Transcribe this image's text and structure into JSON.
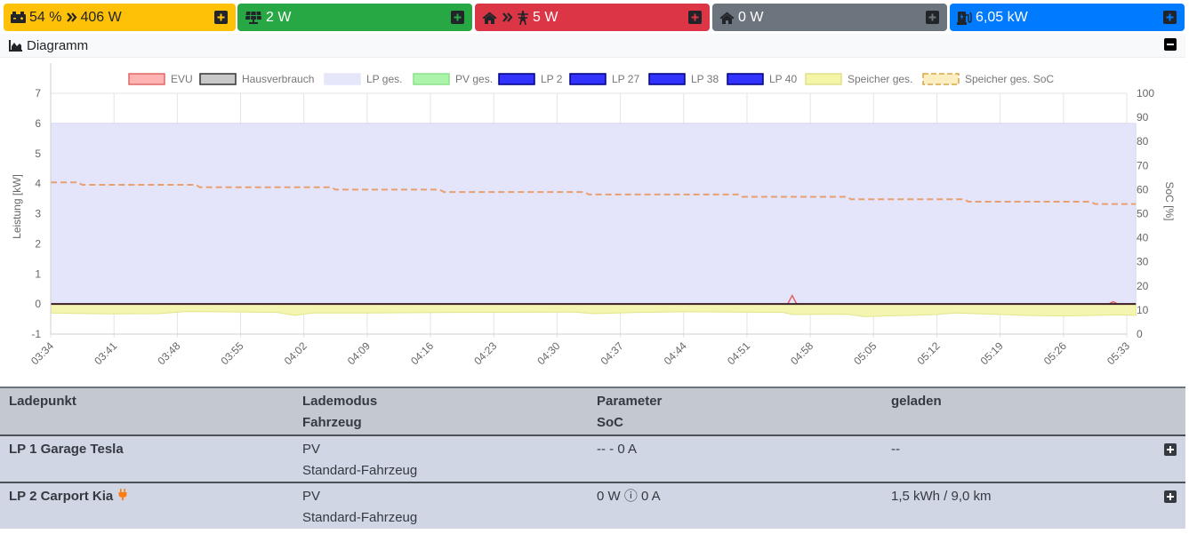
{
  "tiles": {
    "battery": {
      "soc": "54 %",
      "power": "406 W",
      "icons": [
        "battery-icon",
        "double-chevron-right-icon"
      ],
      "color": "#ffc107"
    },
    "pv": {
      "power": "2 W",
      "icons": [
        "solar-panel-icon"
      ],
      "color": "#28a745"
    },
    "grid": {
      "power": "5 W",
      "icons": [
        "home-icon",
        "double-chevron-right-icon",
        "power-pylon-icon"
      ],
      "color": "#dc3545"
    },
    "house": {
      "power": "0 W",
      "icons": [
        "home-icon"
      ],
      "color": "#6c757d"
    },
    "charge": {
      "power": "6,05 kW",
      "icons": [
        "charging-station-icon"
      ],
      "color": "#007bff"
    }
  },
  "diagram": {
    "title": "Diagramm"
  },
  "chart_data": {
    "type": "area",
    "legend_position": "top",
    "grid": true,
    "ylabel": "Leistung [kW]",
    "y2label": "SoC [%]",
    "ylim": [
      -1,
      7
    ],
    "y2lim": [
      0,
      100
    ],
    "yticks": [
      "7",
      "6",
      "5",
      "4",
      "3",
      "2",
      "1",
      "0",
      "-1"
    ],
    "y2ticks": [
      "100",
      "90",
      "80",
      "70",
      "60",
      "50",
      "40",
      "30",
      "20",
      "10",
      "0"
    ],
    "xticks": [
      "03:34",
      "03:41",
      "03:48",
      "03:55",
      "04:02",
      "04:09",
      "04:16",
      "04:23",
      "04:30",
      "04:37",
      "04:44",
      "04:51",
      "04:58",
      "05:05",
      "05:12",
      "05:19",
      "05:26",
      "05:33"
    ],
    "legend": [
      {
        "name": "EVU",
        "fill": "#ffb3b3",
        "stroke": "#e06666",
        "dash": false
      },
      {
        "name": "Hausverbrauch",
        "fill": "#c8c8c8",
        "stroke": "#333333",
        "dash": false
      },
      {
        "name": "LP ges.",
        "fill": "#e6e6fa",
        "stroke": "#e6e6fa",
        "dash": false
      },
      {
        "name": "PV ges.",
        "fill": "#aaf5aa",
        "stroke": "#8de08d",
        "dash": false
      },
      {
        "name": "LP 2",
        "fill": "#3333ff",
        "stroke": "#000080",
        "dash": false
      },
      {
        "name": "LP 27",
        "fill": "#3333ff",
        "stroke": "#000080",
        "dash": false
      },
      {
        "name": "LP 38",
        "fill": "#3333ff",
        "stroke": "#000080",
        "dash": false
      },
      {
        "name": "LP 40",
        "fill": "#3333ff",
        "stroke": "#000080",
        "dash": false
      },
      {
        "name": "Speicher ges.",
        "fill": "#f5f5a8",
        "stroke": "#e0e08a",
        "dash": false
      },
      {
        "name": "Speicher ges. SoC",
        "fill": "#fbeec0",
        "stroke": "#d9a545",
        "dash": true
      }
    ],
    "series": [
      {
        "name": "LP ges.",
        "color": "#e6e6fa",
        "x_minutes": [
          0,
          120
        ],
        "values": [
          6.0,
          6.0
        ]
      },
      {
        "name": "Speicher ges.",
        "color": "#f5f5a8",
        "x_minutes": [
          0,
          6,
          12,
          15,
          25,
          27,
          29,
          35,
          45,
          58,
          60,
          65,
          70,
          81,
          82,
          88,
          90,
          98,
          100,
          108,
          112,
          118,
          120
        ],
        "values": [
          -0.3,
          -0.33,
          -0.32,
          -0.25,
          -0.28,
          -0.38,
          -0.3,
          -0.3,
          -0.28,
          -0.27,
          -0.32,
          -0.28,
          -0.26,
          -0.28,
          -0.35,
          -0.34,
          -0.42,
          -0.35,
          -0.3,
          -0.38,
          -0.4,
          -0.36,
          -0.38
        ]
      },
      {
        "name": "EVU",
        "color": "#e06666",
        "x_minutes": [
          0,
          81.5,
          82,
          82.5,
          117,
          117.5,
          118,
          120
        ],
        "values": [
          0,
          0,
          0.28,
          0,
          0,
          0.08,
          0,
          0
        ]
      },
      {
        "name": "Hausverbrauch",
        "color": "#333333",
        "x_minutes": [
          0,
          120
        ],
        "values": [
          0,
          0
        ]
      },
      {
        "name": "Speicher ges. SoC",
        "color": "#e8a070",
        "axis": "y2",
        "x_minutes": [
          0,
          3,
          3.5,
          16,
          16.5,
          31,
          31.5,
          43,
          43.5,
          59,
          59.5,
          76,
          76.5,
          88,
          88.5,
          101,
          101.5,
          115,
          115.5,
          120
        ],
        "values": [
          63,
          63,
          62,
          62,
          61,
          61,
          60,
          60,
          59,
          59,
          58,
          58,
          57,
          57,
          56,
          56,
          55,
          55,
          54,
          54
        ]
      }
    ]
  },
  "table": {
    "header": {
      "col1": "Ladepunkt",
      "col2a": "Lademodus",
      "col2b": "Fahrzeug",
      "col3a": "Parameter",
      "col3b": "SoC",
      "col4": "geladen"
    },
    "rows": [
      {
        "name": "LP 1 Garage Tesla",
        "mode": "PV",
        "vehicle": "Standard-Fahrzeug",
        "param": "-- - 0 A",
        "charged": "--",
        "plug_icon": false
      },
      {
        "name": "LP 2 Carport Kia",
        "mode": "PV",
        "vehicle": "Standard-Fahrzeug",
        "param": "0 W ⓘ 0 A",
        "charged": "1,5 kWh / 9,0 km",
        "plug_icon": true
      }
    ]
  }
}
